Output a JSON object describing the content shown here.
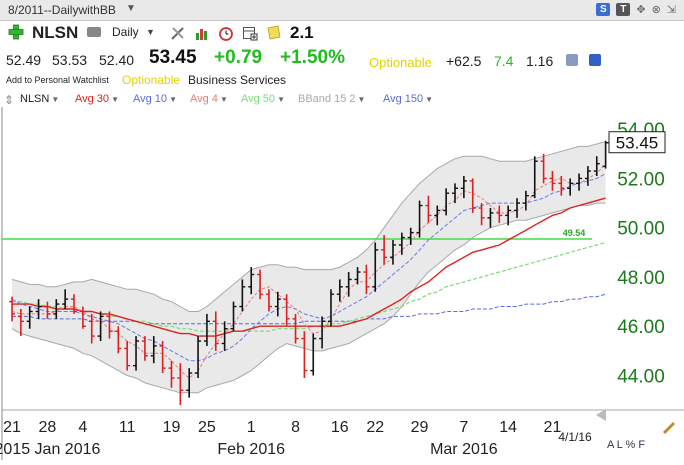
{
  "window": {
    "title": "8/2011--DailywithBB"
  },
  "toolbar": {
    "symbol": "NLSN",
    "period": "Daily",
    "version": "2.1"
  },
  "quote": {
    "open": "52.49",
    "high": "53.53",
    "low": "52.40",
    "last": "53.45",
    "change": "+0.79",
    "change_pct": "+1.50%",
    "optionable": "Optionable",
    "extra1": "+62.5",
    "extra2": "7.4",
    "extra3": "1.16",
    "colors": {
      "up": "#22bb22",
      "optionable": "#e3d200",
      "extra2": "#22bb22"
    }
  },
  "info": {
    "watchlist": "Add to Personal Watchlist",
    "optionable": "Optionable",
    "sector": "Business Services"
  },
  "legend": [
    {
      "label": "NLSN",
      "color": "#222222"
    },
    {
      "label": "Avg 30",
      "color": "#dd2222"
    },
    {
      "label": "Avg 10",
      "color": "#5b6bdf"
    },
    {
      "label": "Avg 4",
      "color": "#ee7777"
    },
    {
      "label": "Avg 50",
      "color": "#77dd77"
    },
    {
      "label": "BBand 15 2",
      "color": "#aaaaaa"
    },
    {
      "label": "Avg 150",
      "color": "#5b6bdf"
    }
  ],
  "footer": {
    "date": "4/1/16",
    "modes": "A L % F"
  },
  "chart_data": {
    "type": "ohlc",
    "y_ticks": [
      "54.00",
      "52.00",
      "50.00",
      "48.00",
      "46.00",
      "44.00"
    ],
    "ylim": [
      42.6,
      54.9
    ],
    "x_day_labels": [
      {
        "day": "21",
        "i": 0
      },
      {
        "day": "28",
        "i": 4
      },
      {
        "day": "4",
        "i": 8
      },
      {
        "day": "11",
        "i": 13
      },
      {
        "day": "19",
        "i": 18
      },
      {
        "day": "25",
        "i": 22
      },
      {
        "day": "1",
        "i": 27
      },
      {
        "day": "8",
        "i": 32
      },
      {
        "day": "16",
        "i": 37
      },
      {
        "day": "22",
        "i": 41
      },
      {
        "day": "29",
        "i": 46
      },
      {
        "day": "7",
        "i": 51
      },
      {
        "day": "14",
        "i": 56
      },
      {
        "day": "21",
        "i": 61
      }
    ],
    "x_month_labels": [
      {
        "label": "2015 Jan 2016",
        "i": 4
      },
      {
        "label": "Feb 2016",
        "i": 27
      },
      {
        "label": "Mar 2016",
        "i": 51
      }
    ],
    "last_price": "53.45",
    "horizontal_line": {
      "value": 49.54,
      "label": "49.54",
      "color": "#44dd44"
    },
    "ohlc": [
      [
        47.0,
        47.2,
        46.2,
        46.5
      ],
      [
        46.4,
        46.7,
        45.6,
        46.2
      ],
      [
        46.2,
        46.8,
        45.9,
        46.6
      ],
      [
        46.6,
        47.1,
        46.3,
        46.8
      ],
      [
        46.8,
        47.0,
        46.3,
        46.5
      ],
      [
        46.5,
        47.1,
        46.3,
        46.9
      ],
      [
        46.9,
        47.5,
        46.7,
        47.1
      ],
      [
        47.1,
        47.3,
        46.5,
        46.6
      ],
      [
        46.6,
        46.8,
        45.9,
        46.0
      ],
      [
        46.2,
        46.5,
        45.3,
        45.6
      ],
      [
        45.6,
        46.6,
        45.4,
        46.4
      ],
      [
        46.4,
        46.6,
        45.5,
        45.8
      ],
      [
        45.8,
        46.0,
        44.9,
        45.1
      ],
      [
        45.1,
        45.4,
        44.2,
        44.4
      ],
      [
        44.4,
        45.6,
        44.2,
        45.4
      ],
      [
        45.4,
        45.6,
        44.6,
        44.8
      ],
      [
        44.8,
        45.6,
        44.5,
        45.2
      ],
      [
        45.2,
        45.4,
        44.1,
        44.3
      ],
      [
        44.3,
        44.6,
        43.5,
        43.9
      ],
      [
        43.9,
        44.5,
        42.8,
        43.4
      ],
      [
        43.4,
        44.3,
        43.1,
        44.1
      ],
      [
        44.1,
        45.6,
        43.9,
        45.4
      ],
      [
        45.4,
        46.5,
        45.2,
        46.2
      ],
      [
        46.2,
        46.6,
        45.0,
        45.3
      ],
      [
        45.3,
        46.2,
        45.0,
        45.9
      ],
      [
        45.9,
        47.0,
        45.8,
        46.8
      ],
      [
        46.8,
        47.9,
        46.6,
        47.6
      ],
      [
        47.6,
        48.4,
        47.3,
        48.1
      ],
      [
        48.1,
        48.3,
        47.1,
        47.3
      ],
      [
        47.3,
        47.5,
        46.6,
        46.8
      ],
      [
        46.8,
        47.4,
        46.4,
        47.1
      ],
      [
        47.1,
        47.3,
        46.0,
        46.3
      ],
      [
        46.3,
        46.5,
        45.3,
        45.5
      ],
      [
        45.5,
        45.8,
        43.9,
        44.2
      ],
      [
        44.2,
        45.7,
        44.0,
        45.5
      ],
      [
        45.5,
        46.4,
        45.1,
        46.2
      ],
      [
        46.2,
        47.5,
        46.0,
        47.3
      ],
      [
        47.3,
        47.9,
        47.0,
        47.6
      ],
      [
        47.6,
        48.2,
        47.2,
        47.9
      ],
      [
        47.9,
        48.4,
        47.7,
        48.2
      ],
      [
        48.2,
        48.5,
        47.3,
        47.6
      ],
      [
        47.6,
        49.4,
        47.4,
        49.1
      ],
      [
        49.1,
        49.7,
        48.5,
        48.8
      ],
      [
        48.8,
        49.5,
        48.5,
        49.3
      ],
      [
        49.3,
        49.8,
        48.9,
        49.6
      ],
      [
        49.6,
        50.0,
        49.3,
        49.8
      ],
      [
        49.8,
        51.1,
        49.6,
        50.9
      ],
      [
        50.9,
        51.3,
        50.2,
        50.5
      ],
      [
        50.5,
        50.9,
        50.1,
        50.7
      ],
      [
        50.7,
        51.6,
        50.5,
        51.4
      ],
      [
        51.4,
        51.8,
        51.0,
        51.6
      ],
      [
        51.6,
        52.1,
        51.2,
        51.9
      ],
      [
        51.9,
        52.0,
        50.6,
        50.8
      ],
      [
        50.8,
        51.0,
        50.1,
        50.4
      ],
      [
        50.4,
        50.8,
        50.0,
        50.6
      ],
      [
        50.6,
        50.9,
        50.2,
        50.5
      ],
      [
        50.5,
        50.9,
        50.1,
        50.7
      ],
      [
        50.7,
        51.2,
        50.4,
        51.0
      ],
      [
        51.0,
        51.5,
        50.7,
        51.3
      ],
      [
        51.3,
        52.9,
        51.2,
        52.7
      ],
      [
        52.7,
        53.0,
        51.8,
        52.0
      ],
      [
        52.0,
        52.3,
        51.5,
        51.8
      ],
      [
        51.8,
        52.1,
        51.3,
        51.6
      ],
      [
        51.6,
        52.0,
        51.3,
        51.8
      ],
      [
        51.8,
        52.2,
        51.5,
        52.0
      ],
      [
        52.0,
        52.5,
        51.7,
        52.3
      ],
      [
        52.3,
        52.9,
        52.1,
        52.6
      ],
      [
        52.49,
        53.53,
        52.4,
        53.45
      ]
    ],
    "avg4": [
      46.6,
      46.5,
      46.5,
      46.5,
      46.5,
      46.6,
      46.8,
      46.8,
      46.6,
      46.3,
      46.2,
      45.9,
      45.7,
      45.4,
      45.2,
      44.9,
      44.9,
      44.9,
      44.6,
      44.2,
      43.9,
      44.2,
      44.8,
      45.3,
      45.7,
      46.1,
      46.6,
      47.1,
      47.5,
      47.6,
      47.3,
      47.0,
      46.7,
      46.1,
      45.7,
      45.8,
      46.3,
      46.9,
      47.5,
      47.8,
      47.8,
      48.2,
      48.5,
      48.8,
      49.1,
      49.4,
      49.9,
      50.2,
      50.5,
      50.9,
      51.1,
      51.5,
      51.4,
      51.2,
      50.9,
      50.6,
      50.6,
      50.7,
      50.9,
      51.5,
      51.7,
      51.9,
      52.0,
      51.8,
      51.8,
      52.0,
      52.2,
      52.6
    ],
    "avg10": [
      47.1,
      46.9,
      46.8,
      46.7,
      46.6,
      46.6,
      46.6,
      46.6,
      46.5,
      46.4,
      46.3,
      46.2,
      46.1,
      45.9,
      45.7,
      45.5,
      45.4,
      45.2,
      45.0,
      44.8,
      44.6,
      44.6,
      44.7,
      44.9,
      45.0,
      45.2,
      45.5,
      45.9,
      46.2,
      46.5,
      46.7,
      46.8,
      46.7,
      46.5,
      46.4,
      46.3,
      46.4,
      46.6,
      46.8,
      47.0,
      47.2,
      47.5,
      47.8,
      48.1,
      48.4,
      48.7,
      49.1,
      49.5,
      49.8,
      50.1,
      50.4,
      50.7,
      50.8,
      50.9,
      51.0,
      51.0,
      51.0,
      51.0,
      51.0,
      51.1,
      51.2,
      51.4,
      51.5,
      51.7,
      51.8,
      51.9,
      52.0,
      52.2
    ],
    "avg30": [
      46.9,
      46.9,
      46.9,
      46.8,
      46.8,
      46.7,
      46.7,
      46.7,
      46.6,
      46.6,
      46.5,
      46.5,
      46.4,
      46.3,
      46.2,
      46.1,
      46.0,
      45.9,
      45.8,
      45.7,
      45.7,
      45.6,
      45.6,
      45.6,
      45.7,
      45.8,
      45.8,
      45.9,
      46.0,
      46.0,
      46.0,
      46.0,
      46.0,
      46.0,
      46.0,
      46.0,
      46.0,
      46.0,
      46.1,
      46.2,
      46.3,
      46.5,
      46.7,
      46.9,
      47.1,
      47.4,
      47.6,
      47.8,
      48.1,
      48.4,
      48.6,
      48.8,
      49.0,
      49.1,
      49.2,
      49.3,
      49.5,
      49.7,
      49.9,
      50.1,
      50.3,
      50.5,
      50.6,
      50.8,
      50.9,
      51.0,
      51.1,
      51.2
    ],
    "avg50": [
      47.0,
      47.0,
      46.9,
      46.9,
      46.8,
      46.8,
      46.7,
      46.7,
      46.6,
      46.6,
      46.5,
      46.4,
      46.4,
      46.3,
      46.2,
      46.2,
      46.1,
      46.0,
      46.0,
      45.9,
      45.9,
      45.8,
      45.8,
      45.8,
      45.8,
      45.8,
      45.8,
      45.8,
      45.8,
      45.8,
      45.9,
      45.9,
      45.9,
      45.9,
      46.0,
      46.0,
      46.1,
      46.1,
      46.2,
      46.3,
      46.4,
      46.5,
      46.6,
      46.7,
      46.8,
      47.0,
      47.1,
      47.3,
      47.4,
      47.6,
      47.7,
      47.8,
      47.9,
      48.0,
      48.1,
      48.2,
      48.3,
      48.4,
      48.5,
      48.6,
      48.7,
      48.8,
      48.9,
      49.0,
      49.1,
      49.2,
      49.3,
      49.4
    ],
    "avg150": [
      46.4,
      46.4,
      46.4,
      46.3,
      46.3,
      46.3,
      46.3,
      46.3,
      46.3,
      46.2,
      46.2,
      46.2,
      46.2,
      46.2,
      46.2,
      46.1,
      46.1,
      46.1,
      46.1,
      46.1,
      46.1,
      46.1,
      46.1,
      46.1,
      46.1,
      46.1,
      46.1,
      46.1,
      46.1,
      46.1,
      46.1,
      46.1,
      46.1,
      46.2,
      46.2,
      46.2,
      46.2,
      46.2,
      46.2,
      46.2,
      46.3,
      46.3,
      46.3,
      46.4,
      46.4,
      46.4,
      46.5,
      46.5,
      46.5,
      46.6,
      46.6,
      46.6,
      46.7,
      46.7,
      46.7,
      46.8,
      46.8,
      46.8,
      46.9,
      46.9,
      46.9,
      47.0,
      47.0,
      47.1,
      47.1,
      47.2,
      47.2,
      47.3
    ],
    "bband_upper": [
      47.9,
      47.8,
      47.7,
      47.7,
      47.6,
      47.6,
      47.7,
      47.8,
      47.8,
      47.9,
      47.8,
      47.7,
      47.6,
      47.5,
      47.5,
      47.4,
      47.3,
      47.1,
      47.0,
      46.8,
      46.6,
      46.6,
      46.8,
      47.1,
      47.4,
      47.7,
      48.0,
      48.3,
      48.4,
      48.5,
      48.5,
      48.4,
      48.4,
      48.3,
      48.3,
      48.3,
      48.3,
      48.4,
      48.6,
      48.8,
      49.1,
      49.5,
      50.0,
      50.5,
      51.0,
      51.4,
      51.8,
      52.1,
      52.4,
      52.6,
      52.8,
      52.9,
      52.9,
      52.9,
      52.8,
      52.7,
      52.7,
      52.7,
      52.7,
      52.8,
      52.9,
      53.0,
      53.1,
      53.2,
      53.3,
      53.3,
      53.4,
      53.5
    ],
    "bband_lower": [
      45.9,
      45.7,
      45.6,
      45.5,
      45.4,
      45.3,
      45.2,
      45.1,
      44.9,
      44.8,
      44.6,
      44.4,
      44.2,
      44.0,
      43.9,
      43.7,
      43.6,
      43.5,
      43.4,
      43.3,
      43.3,
      43.3,
      43.5,
      43.6,
      43.7,
      43.8,
      44.0,
      44.2,
      44.5,
      44.8,
      45.1,
      45.3,
      45.2,
      45.1,
      45.0,
      45.0,
      45.1,
      45.2,
      45.3,
      45.5,
      45.7,
      45.9,
      46.1,
      46.4,
      46.8,
      47.3,
      47.8,
      48.2,
      48.5,
      48.8,
      49.1,
      49.3,
      49.6,
      49.8,
      50.0,
      50.1,
      50.2,
      50.3,
      50.3,
      50.4,
      50.5,
      50.6,
      50.7,
      50.8,
      50.9,
      50.9,
      51.0,
      51.0
    ]
  }
}
